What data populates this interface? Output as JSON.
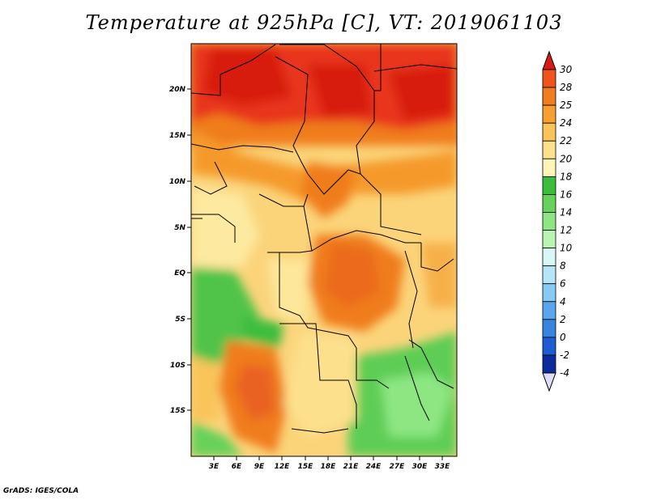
{
  "title": "Temperature at 925hPa [C], VT: 2019061103",
  "footer": "GrADS: IGES/COLA",
  "map": {
    "lat_labels": [
      "20N",
      "15N",
      "10N",
      "5N",
      "EQ",
      "5S",
      "10S",
      "15S"
    ],
    "lon_labels": [
      "3E",
      "6E",
      "9E",
      "12E",
      "15E",
      "18E",
      "21E",
      "24E",
      "27E",
      "30E",
      "33E"
    ]
  },
  "colorbar": {
    "levels": [
      "30",
      "28",
      "25",
      "24",
      "22",
      "20",
      "18",
      "16",
      "14",
      "12",
      "10",
      "8",
      "6",
      "4",
      "2",
      "0",
      "-2",
      "-4"
    ],
    "colors": [
      "#ef2a10",
      "#f0541a",
      "#f07d1e",
      "#f5a030",
      "#f9c45a",
      "#fde08c",
      "#fff5b8",
      "#3cbd3c",
      "#65d25a",
      "#8de682",
      "#b9f5b0",
      "#d8f8f8",
      "#b5e6f8",
      "#87caf3",
      "#5aa5ec",
      "#3a84e0",
      "#1d5dd0",
      "#0c2b9c",
      "#0a1270"
    ],
    "top_triangle_color": "#d61d14",
    "bottom_triangle_color": "#ddddf8"
  }
}
